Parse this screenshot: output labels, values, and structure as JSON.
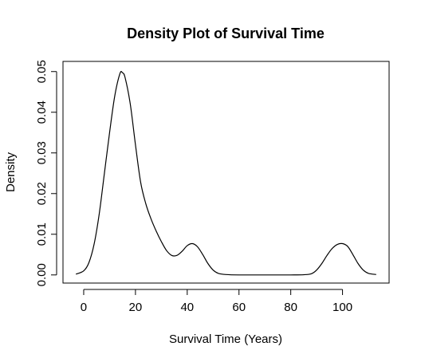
{
  "chart_data": {
    "type": "line",
    "title": "Density Plot of Survival Time",
    "xlabel": "Survival Time (Years)",
    "ylabel": "Density",
    "xlim": [
      -8,
      118
    ],
    "ylim": [
      -0.002,
      0.0525
    ],
    "x_ticks": [
      0,
      20,
      40,
      60,
      80,
      100
    ],
    "x_tick_labels": [
      "0",
      "20",
      "40",
      "60",
      "80",
      "100"
    ],
    "y_ticks": [
      0.0,
      0.01,
      0.02,
      0.03,
      0.04,
      0.05
    ],
    "y_tick_labels": [
      "0.00",
      "0.01",
      "0.02",
      "0.03",
      "0.04",
      "0.05"
    ],
    "grid": false,
    "series": [
      {
        "color": "#000000",
        "x": [
          -3,
          0,
          2,
          4,
          6,
          8,
          10,
          12,
          14,
          15,
          16,
          18,
          20,
          22,
          24,
          26,
          28,
          30,
          32,
          34,
          36,
          38,
          40,
          42,
          44,
          46,
          48,
          50,
          52,
          55,
          60,
          70,
          80,
          85,
          88,
          90,
          92,
          94,
          96,
          98,
          100,
          102,
          104,
          106,
          108,
          110,
          113
        ],
        "y": [
          0.0002,
          0.001,
          0.003,
          0.0075,
          0.015,
          0.025,
          0.035,
          0.044,
          0.0495,
          0.0497,
          0.0485,
          0.042,
          0.032,
          0.0228,
          0.0175,
          0.0138,
          0.0108,
          0.0082,
          0.006,
          0.0048,
          0.0048,
          0.0058,
          0.0072,
          0.0077,
          0.0069,
          0.005,
          0.0028,
          0.0012,
          0.0004,
          0.0001,
          0.0,
          0.0,
          0.0,
          5e-05,
          0.0003,
          0.0012,
          0.0028,
          0.0048,
          0.0065,
          0.0075,
          0.0077,
          0.007,
          0.005,
          0.0028,
          0.0012,
          0.0004,
          0.0001
        ]
      }
    ]
  }
}
